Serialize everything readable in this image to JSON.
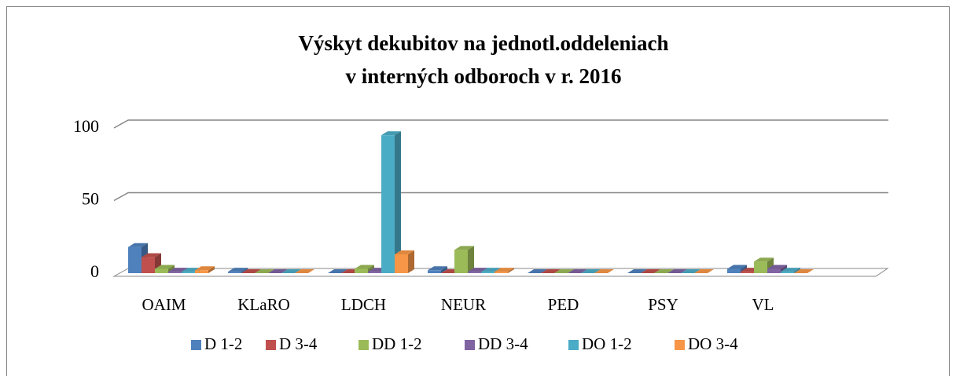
{
  "chart_data": {
    "type": "bar3d",
    "title": [
      "Výskyt dekubitov na jednotl.oddeleniach",
      "v interných odboroch v r. 2016"
    ],
    "categories": [
      "OAIM",
      "KLaRO",
      "LDCH",
      "NEUR",
      "PED",
      "PSY",
      "VL"
    ],
    "series": [
      {
        "name": "D 1-2",
        "color": "#4f81bd",
        "values": [
          18,
          1,
          0,
          2,
          0,
          0,
          3
        ]
      },
      {
        "name": "D 3-4",
        "color": "#c0504d",
        "values": [
          11,
          0,
          0,
          0,
          0,
          0,
          1
        ]
      },
      {
        "name": "DD 1-2",
        "color": "#9bbb59",
        "values": [
          3,
          0,
          3,
          16,
          0,
          0,
          8
        ]
      },
      {
        "name": "DD 3-4",
        "color": "#8064a2",
        "values": [
          1,
          0,
          1,
          1,
          0,
          0,
          3
        ]
      },
      {
        "name": "DO 1-2",
        "color": "#4bacc6",
        "values": [
          1,
          0,
          95,
          1,
          0,
          0,
          1
        ]
      },
      {
        "name": "DO 3-4",
        "color": "#f79646",
        "values": [
          2,
          0,
          13,
          1,
          0,
          0,
          0
        ]
      }
    ],
    "ylim": [
      0,
      100
    ],
    "yticks": [
      0,
      50,
      100
    ],
    "grid": true,
    "legend": "bottom"
  }
}
